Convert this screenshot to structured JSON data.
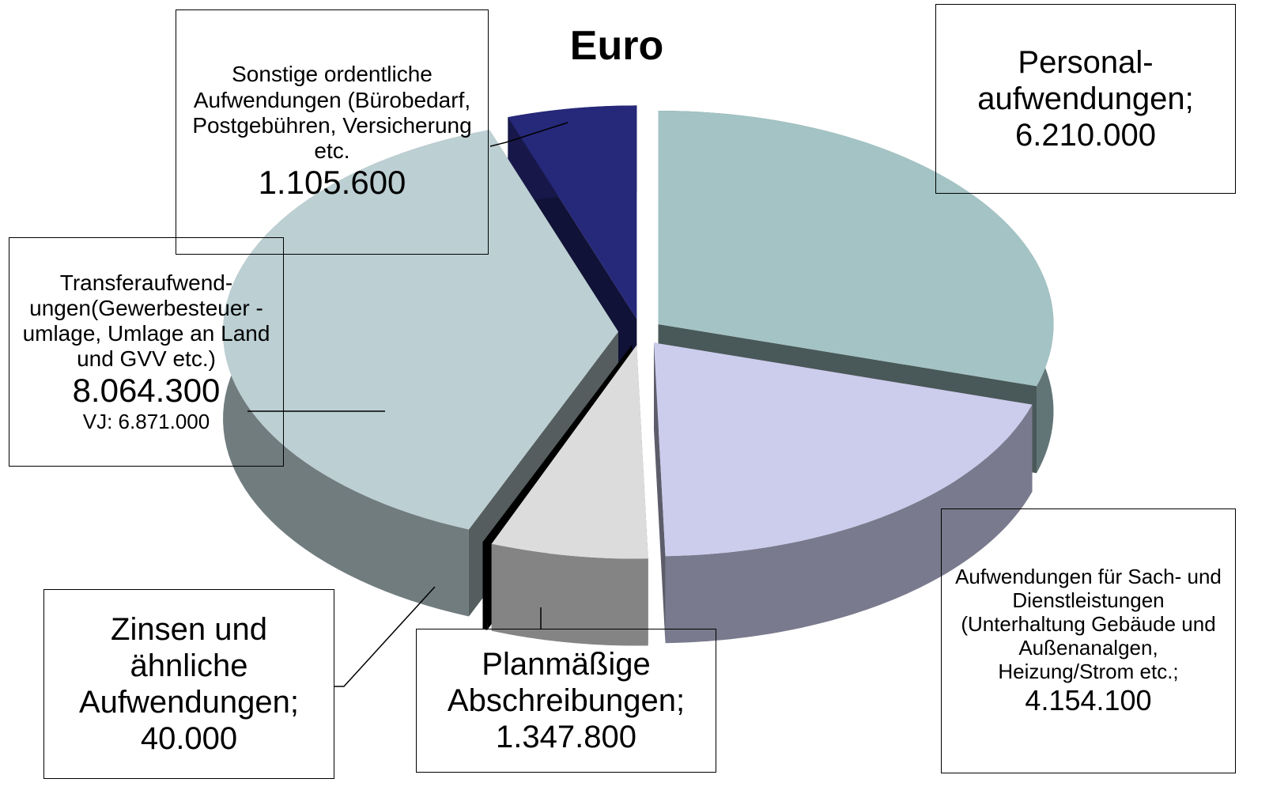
{
  "chart_data": {
    "type": "pie",
    "title": "Euro",
    "categories": [
      "Personal- aufwendungen;",
      "Aufwendungen für Sach- und Dienstleistungen (Unterhaltung Gebäude und Außenanalgen, Heizung/Strom etc.;",
      "Planmäßige Abschreibungen;",
      "Zinsen und ähnliche Aufwendungen;",
      "Transferaufwend- ungen(Gewerbesteuer -umlage, Umlage an Land und GVV etc.)",
      "Sonstige ordentliche Aufwendungen (Bürobedarf, Postgebühren, Versicherung etc."
    ],
    "values": [
      6210000,
      4154100,
      1347800,
      40000,
      8064300,
      1105600
    ],
    "value_labels": [
      "6.210.000",
      "4.154.100",
      "1.347.800",
      "40.000",
      "8.064.300",
      "1.105.600"
    ],
    "colors": [
      "#a3c3c4",
      "#ccccec",
      "#dcdcdc",
      "#000000",
      "#bccfd3",
      "#26287a"
    ],
    "annotations": [
      "VJ: 6.871.000"
    ]
  }
}
